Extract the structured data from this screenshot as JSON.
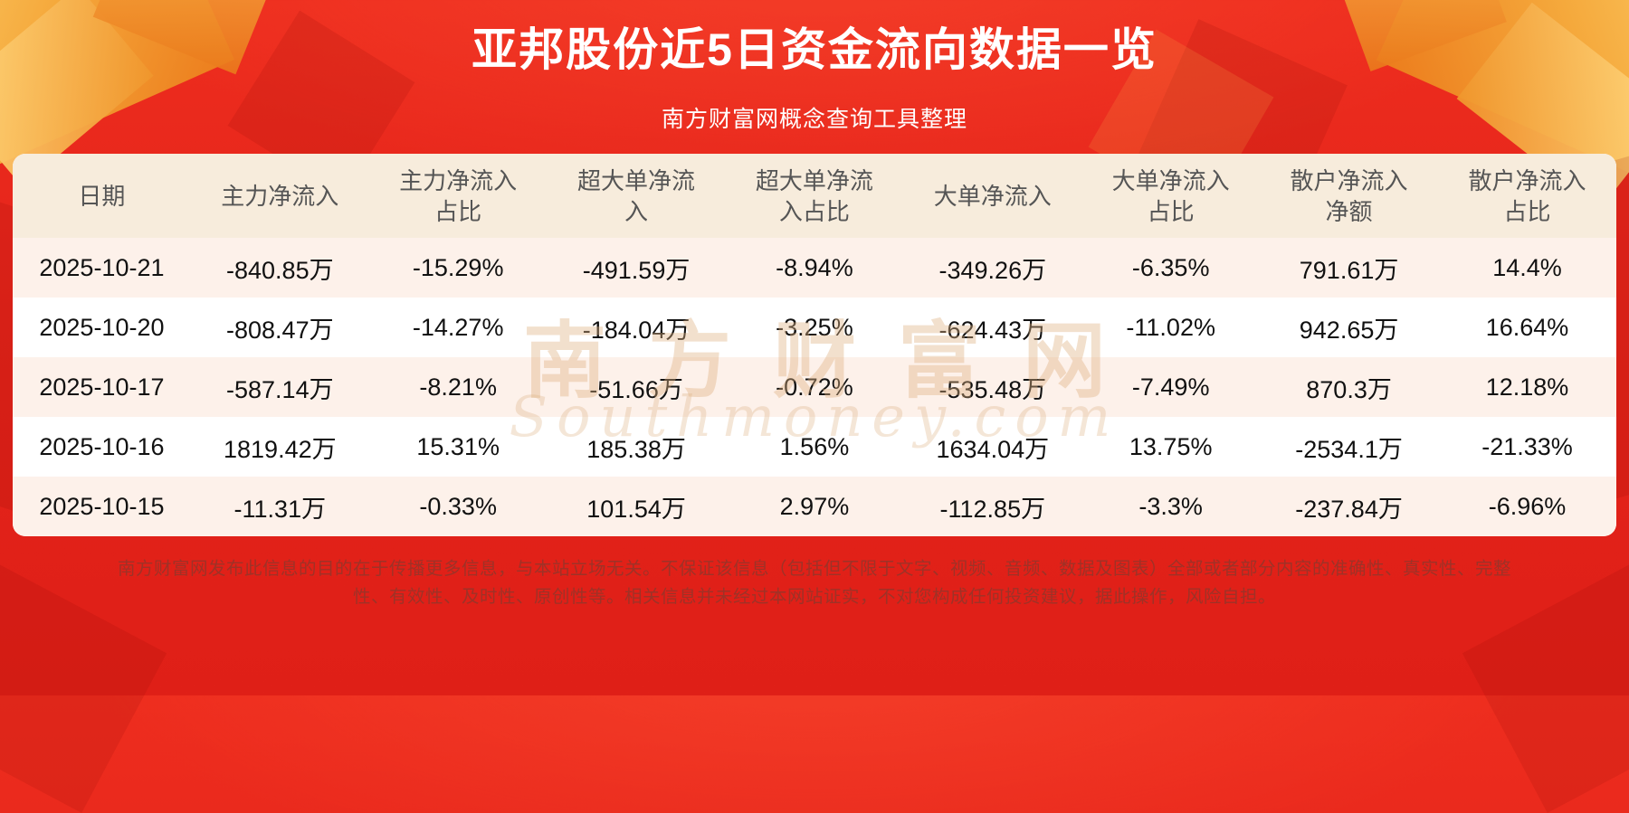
{
  "colors": {
    "background_red": "#ee2d1e",
    "table_header_bg": "#f7ecdc",
    "row_stripe_bg": "#fdf1ea",
    "row_white_bg": "#ffffff",
    "title_text": "#ffffff",
    "header_text": "#555555",
    "cell_text": "#111111",
    "footer_text": "#9e3227",
    "gold_accent": "#f5a93c",
    "watermark_gold": "#deb183"
  },
  "header": {
    "title": "亚邦股份近5日资金流向数据一览",
    "subtitle": "南方财富网概念查询工具整理"
  },
  "chart_data": {
    "type": "table",
    "title": "亚邦股份近5日资金流向数据一览",
    "columns": [
      "日期",
      "主力净流入",
      "主力净流入占比",
      "超大单净流入",
      "超大单净流入占比",
      "大单净流入",
      "大单净流入占比",
      "散户净流入净额",
      "散户净流入占比"
    ],
    "rows": [
      [
        "2025-10-21",
        "-840.85万",
        "-15.29%",
        "-491.59万",
        "-8.94%",
        "-349.26万",
        "-6.35%",
        "791.61万",
        "14.4%"
      ],
      [
        "2025-10-20",
        "-808.47万",
        "-14.27%",
        "-184.04万",
        "-3.25%",
        "-624.43万",
        "-11.02%",
        "942.65万",
        "16.64%"
      ],
      [
        "2025-10-17",
        "-587.14万",
        "-8.21%",
        "-51.66万",
        "-0.72%",
        "-535.48万",
        "-7.49%",
        "870.3万",
        "12.18%"
      ],
      [
        "2025-10-16",
        "1819.42万",
        "15.31%",
        "185.38万",
        "1.56%",
        "1634.04万",
        "13.75%",
        "-2534.1万",
        "-21.33%"
      ],
      [
        "2025-10-15",
        "-11.31万",
        "-0.33%",
        "101.54万",
        "2.97%",
        "-112.85万",
        "-3.3%",
        "-237.84万",
        "-6.96%"
      ]
    ]
  },
  "watermark": {
    "text": "南方财富网",
    "subtext": "Southmoney.com"
  },
  "footer": {
    "disclaimer": "南方财富网发布此信息的目的在于传播更多信息，与本站立场无关。不保证该信息（包括但不限于文字、视频、音频、数据及图表）全部或者部分内容的准确性、真实性、完整性、有效性、及时性、原创性等。相关信息并未经过本网站证实，不对您构成任何投资建议，据此操作，风险自担。"
  }
}
